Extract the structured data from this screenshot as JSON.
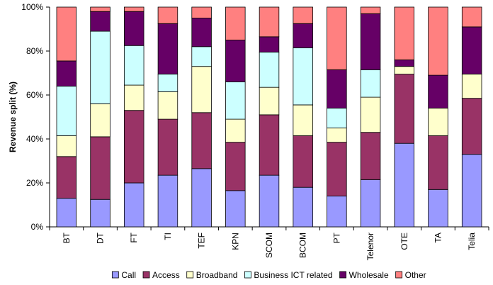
{
  "chart_data": {
    "type": "bar",
    "stacked": true,
    "percent_stacked": true,
    "categories": [
      "BT",
      "DT",
      "FT",
      "TI",
      "TEF",
      "KPN",
      "SCOM",
      "BCOM",
      "PT",
      "Telenor",
      "OTE",
      "TA",
      "Telia"
    ],
    "series": [
      {
        "name": "Call",
        "color": "#9999ff",
        "values": [
          13,
          12.5,
          20,
          23.5,
          26.5,
          16.5,
          23.5,
          18,
          14,
          21.5,
          38,
          17,
          33
        ]
      },
      {
        "name": "Access",
        "color": "#993366",
        "values": [
          19,
          28.5,
          33,
          25.5,
          25.5,
          22,
          27.5,
          23.5,
          24.5,
          21.5,
          31.5,
          24.5,
          25.5
        ]
      },
      {
        "name": "Broadband",
        "color": "#ffffcc",
        "values": [
          9.5,
          15,
          11.5,
          12.5,
          21,
          10.5,
          12.5,
          14,
          6.5,
          16,
          3.5,
          12.5,
          11
        ]
      },
      {
        "name": "Business ICT related",
        "color": "#ccffff",
        "values": [
          22.5,
          33,
          18,
          8,
          9,
          17,
          16,
          26,
          9,
          12.5,
          0,
          0,
          0
        ]
      },
      {
        "name": "Wholesale",
        "color": "#660066",
        "values": [
          11.5,
          9,
          15.5,
          23,
          13,
          19,
          7,
          11,
          17.5,
          25.5,
          3,
          15,
          21.5
        ]
      },
      {
        "name": "Other",
        "color": "#ff8080",
        "values": [
          24.5,
          2,
          2,
          7.5,
          5,
          15,
          13.5,
          7.5,
          28.5,
          3,
          24,
          31,
          9
        ]
      }
    ],
    "ylabel": "Revenue split (%)",
    "xlabel": "",
    "ylim": [
      0,
      100
    ],
    "yticks": [
      "0%",
      "20%",
      "40%",
      "60%",
      "80%",
      "100%"
    ],
    "grid": false,
    "legend_position": "bottom"
  }
}
